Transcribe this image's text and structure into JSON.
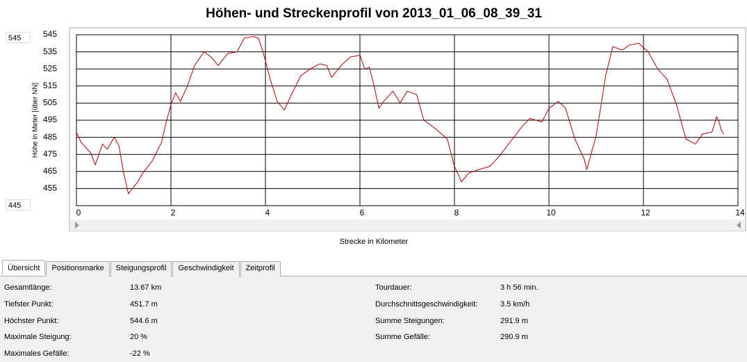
{
  "chart_data": {
    "type": "line",
    "title": "Höhen- und Streckenprofil von 2013_01_06_08_39_31",
    "x_label": "Strecke in Kilometer",
    "y_label": "Höhe in Meter [über NN]",
    "color": "#b00000",
    "x": [
      0,
      0.1,
      0.3,
      0.4,
      0.55,
      0.65,
      0.8,
      0.9,
      1.0,
      1.1,
      1.3,
      1.4,
      1.6,
      1.8,
      1.9,
      2.0,
      2.1,
      2.2,
      2.35,
      2.5,
      2.7,
      2.85,
      3.0,
      3.2,
      3.4,
      3.55,
      3.75,
      3.85,
      3.95,
      4.1,
      4.25,
      4.4,
      4.55,
      4.75,
      4.95,
      5.15,
      5.3,
      5.4,
      5.6,
      5.8,
      6.0,
      6.1,
      6.2,
      6.3,
      6.4,
      6.5,
      6.7,
      6.85,
      7.0,
      7.2,
      7.35,
      7.6,
      7.85,
      8.0,
      8.15,
      8.3,
      8.5,
      8.75,
      8.95,
      9.2,
      9.45,
      9.6,
      9.85,
      10.0,
      10.2,
      10.35,
      10.55,
      10.75,
      10.8,
      11.0,
      11.2,
      11.35,
      11.55,
      11.7,
      11.9,
      12.1,
      12.3,
      12.5,
      12.7,
      12.9,
      13.1,
      13.25,
      13.45,
      13.55,
      13.6,
      13.65,
      13.7
    ],
    "series": [
      {
        "name": "Höhe",
        "color": "#b00000",
        "values": [
          488,
          482,
          476,
          469,
          481,
          478,
          485,
          480,
          464,
          452,
          459,
          464,
          471,
          482,
          494,
          504,
          511,
          506,
          515,
          527,
          535,
          532,
          527,
          534,
          535,
          543,
          544,
          543,
          535,
          519,
          506,
          501,
          510,
          521,
          525,
          528,
          527,
          520,
          527,
          532,
          533,
          525,
          526,
          515,
          502,
          506,
          512,
          505,
          512,
          510,
          495,
          490,
          484,
          468,
          459,
          464,
          466,
          468,
          474,
          483,
          492,
          496,
          494,
          502,
          506,
          502,
          484,
          472,
          466,
          486,
          521,
          538,
          536,
          539,
          540,
          535,
          525,
          519,
          504,
          484,
          481,
          487,
          488,
          497,
          494,
          489,
          487
        ]
      }
    ],
    "xlim": [
      0,
      14
    ],
    "xticks": [
      0,
      2,
      4,
      6,
      8,
      10,
      12,
      14
    ],
    "ylim": [
      445,
      545
    ],
    "yticks": [
      455,
      465,
      475,
      485,
      495,
      505,
      515,
      525,
      535,
      545
    ],
    "grid": true
  },
  "ui": {
    "y_max_input": "545",
    "y_min_input": "445",
    "tabs": [
      "Übersicht",
      "Positionsmarke",
      "Steigungsprofil",
      "Geschwindigkeit",
      "Zeitprofil"
    ],
    "summary_left": [
      [
        "Gesamtlänge:",
        "13.67 km"
      ],
      [
        "Tiefster Punkt:",
        "451.7 m"
      ],
      [
        "Höchster Punkt:",
        "544.6 m"
      ],
      [
        "Maximale Steigung:",
        "20 %"
      ],
      [
        "Maximales Gefälle:",
        "-22 %"
      ]
    ],
    "summary_right": [
      [
        "Tourdauer:",
        "3 h 56 min."
      ],
      [
        "Durchschnittsgeschwindigkeit:",
        "3.5 km/h"
      ],
      [
        "Summe Steigungen:",
        "291.9 m"
      ],
      [
        "Summe Gefälle:",
        "290.9 m"
      ]
    ]
  }
}
